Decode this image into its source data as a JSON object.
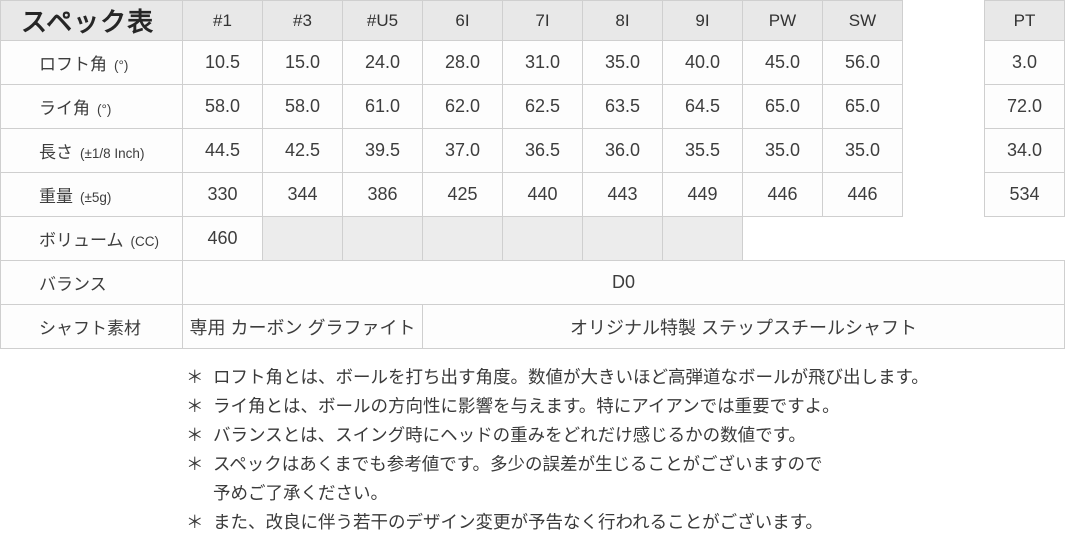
{
  "table": {
    "title": "スペック表",
    "columns": [
      "#1",
      "#3",
      "#U5",
      "6I",
      "7I",
      "8I",
      "9I",
      "PW",
      "SW",
      "PT"
    ],
    "rows": [
      {
        "label": "ロフト角",
        "unit": "(°)",
        "values": [
          "10.5",
          "15.0",
          "24.0",
          "28.0",
          "31.0",
          "35.0",
          "40.0",
          "45.0",
          "56.0",
          "3.0"
        ]
      },
      {
        "label": "ライ角",
        "unit": "(°)",
        "values": [
          "58.0",
          "58.0",
          "61.0",
          "62.0",
          "62.5",
          "63.5",
          "64.5",
          "65.0",
          "65.0",
          "72.0"
        ]
      },
      {
        "label": "長さ",
        "unit": "(±1/8 Inch)",
        "values": [
          "44.5",
          "42.5",
          "39.5",
          "37.0",
          "36.5",
          "36.0",
          "35.5",
          "35.0",
          "35.0",
          "34.0"
        ]
      },
      {
        "label": "重量",
        "unit": "(±5g)",
        "values": [
          "330",
          "344",
          "386",
          "425",
          "440",
          "443",
          "449",
          "446",
          "446",
          "534"
        ]
      }
    ],
    "volume": {
      "label": "ボリューム",
      "unit": "(CC)",
      "value": "460"
    },
    "balance": {
      "label": "バランス",
      "value": "D0"
    },
    "shaft": {
      "label": "シャフト素材",
      "carbon": "専用 カーボン グラファイト",
      "steel": "オリジナル特製 ステップスチールシャフト"
    }
  },
  "notes": [
    {
      "marker": "＊",
      "text": "ロフト角とは、ボールを打ち出す角度。数値が大きいほど高弾道なボールが飛び出します。"
    },
    {
      "marker": "＊",
      "text": "ライ角とは、ボールの方向性に影響を与えます。特にアイアンでは重要ですよ。"
    },
    {
      "marker": "＊",
      "text": "バランスとは、スイング時にヘッドの重みをどれだけ感じるかの数値です。"
    },
    {
      "marker": "＊",
      "text": "スペックはあくまでも参考値です。多少の誤差が生じることがございますので"
    },
    {
      "marker": "",
      "text": "予めご了承ください。"
    },
    {
      "marker": "＊",
      "text": "また、改良に伴う若干のデザイン変更が予告なく行われることがございます。"
    }
  ],
  "colors": {
    "header_bg": "#e8e8e8",
    "cell_bg": "#fdfdfd",
    "shaded_cell_bg": "#ececec",
    "border": "#cfcfcf",
    "text": "#3d3d3d"
  }
}
